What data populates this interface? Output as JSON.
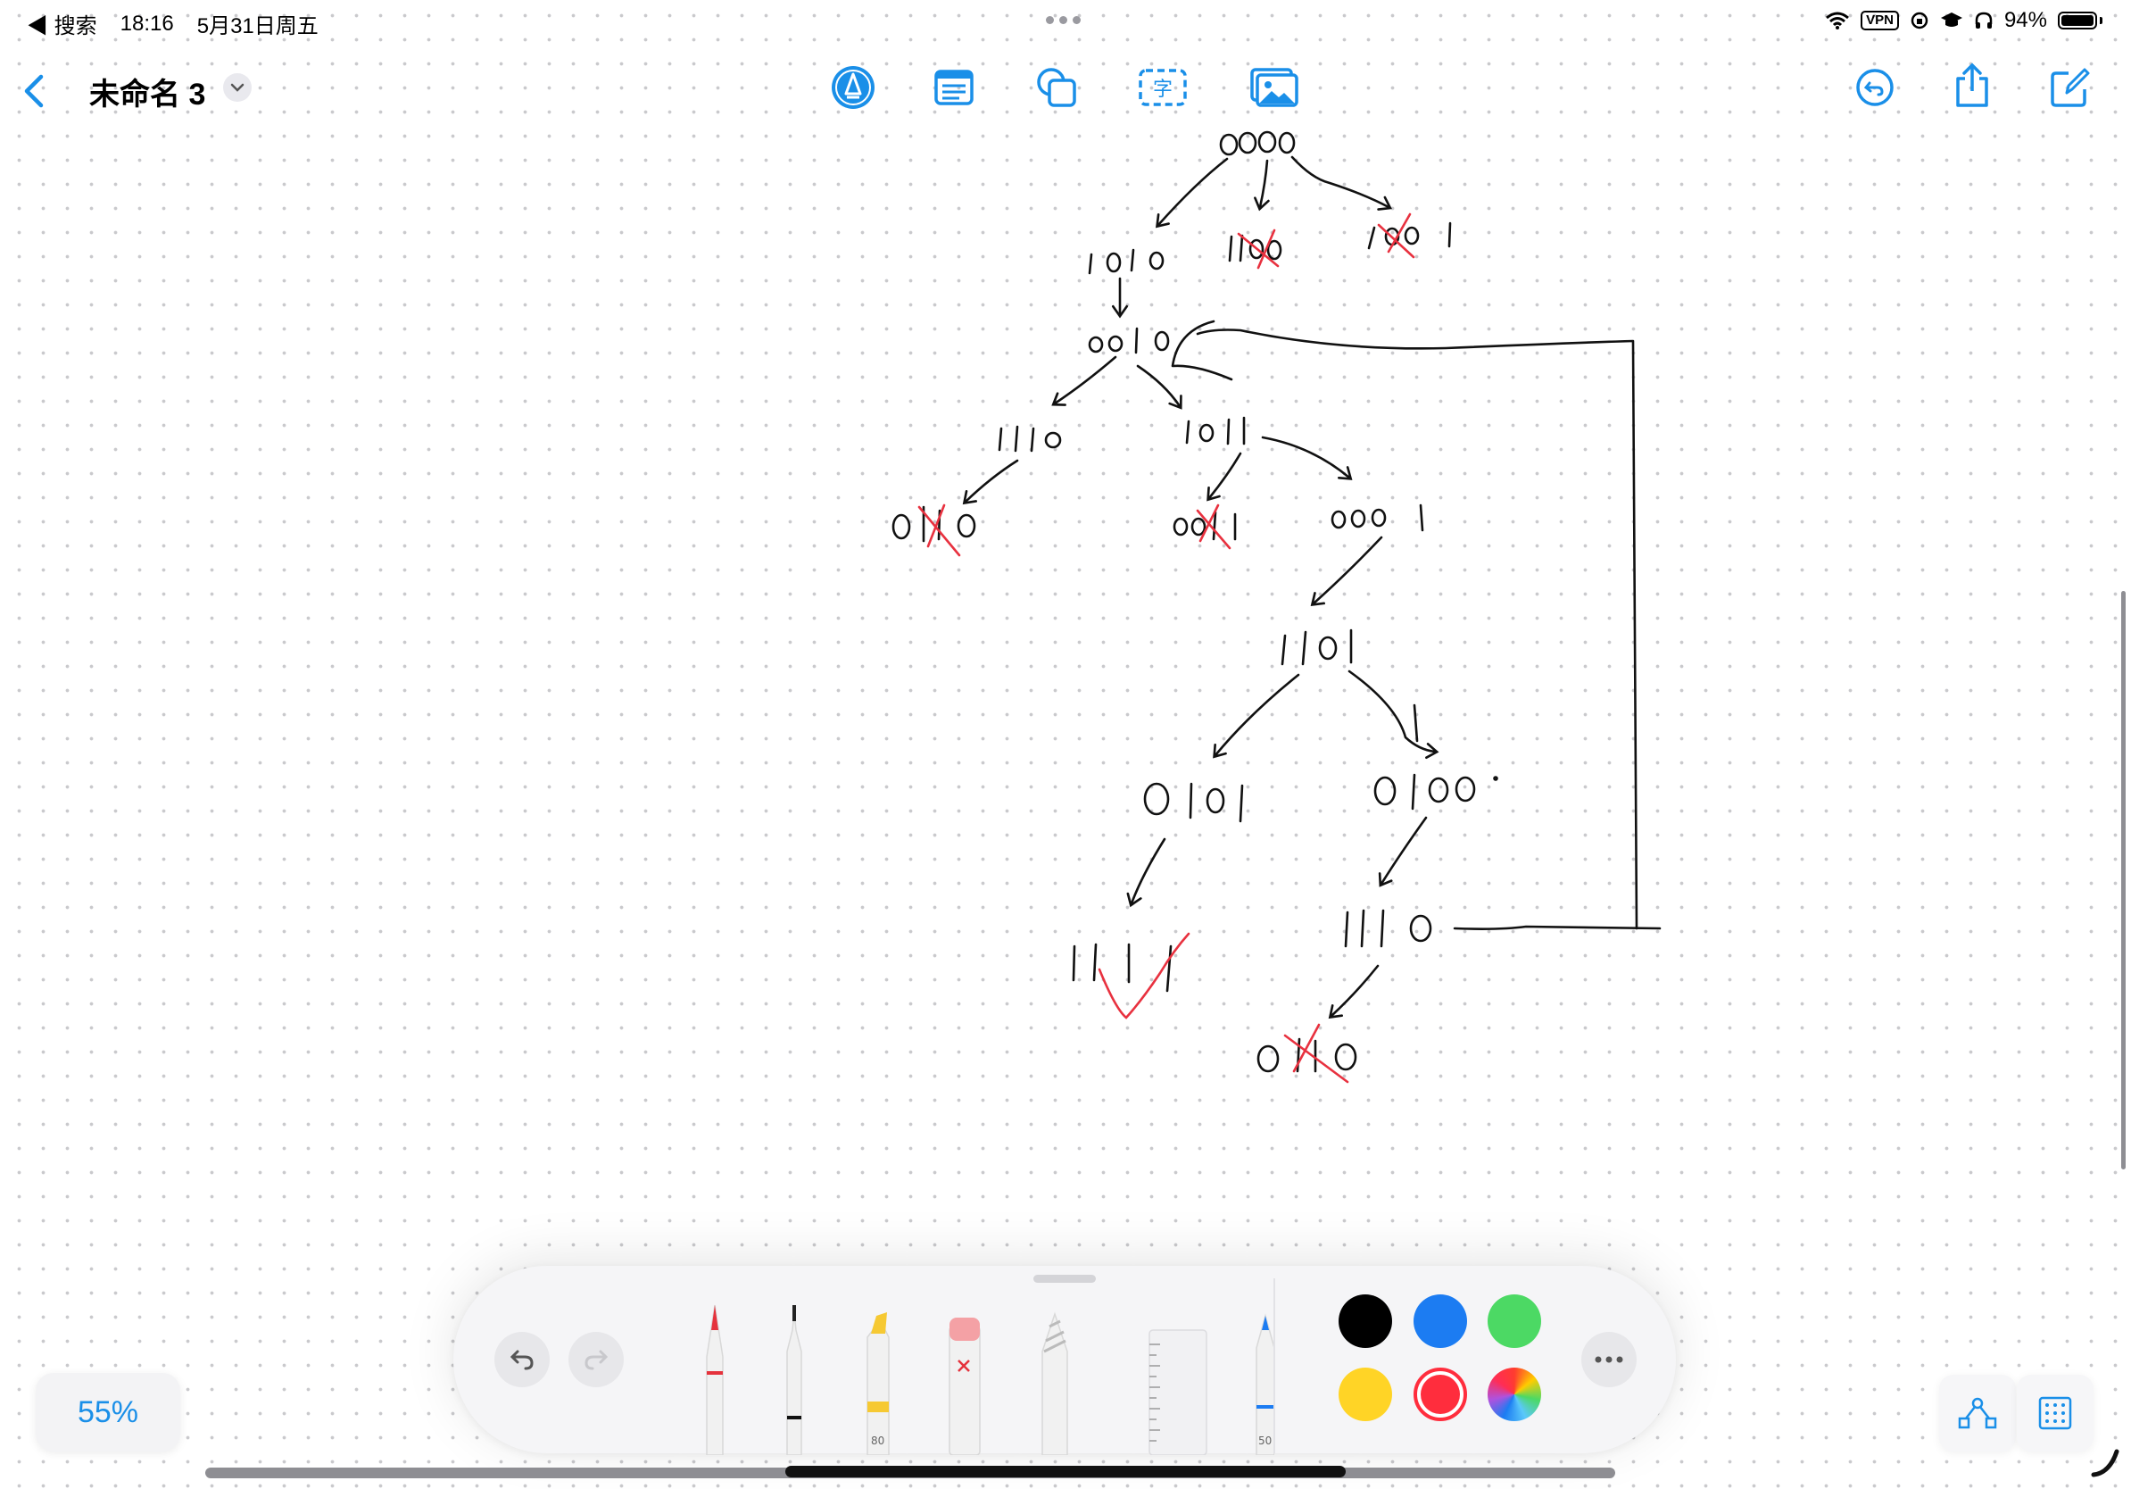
{
  "status_bar": {
    "back_app": "◀ 搜索",
    "time": "18:16",
    "date": "5月31日周五",
    "vpn": "VPN",
    "battery": "94%"
  },
  "nav": {
    "title": "未命名 3",
    "text_tool_glyph": "字"
  },
  "zoom": {
    "label": "55%"
  },
  "palette": {
    "marker_width": "80",
    "crayon_width": "50",
    "colors": [
      "#000000",
      "#1c7cf2",
      "#4cd964",
      "#ffd426",
      "#ff2d3d"
    ],
    "selected_color": "#ff2d3d"
  },
  "drawing": {
    "nodes": [
      {
        "text": "0000"
      },
      {
        "text": "1010"
      },
      {
        "text": "1100"
      },
      {
        "text": "1001"
      },
      {
        "text": "0010"
      },
      {
        "text": "1110"
      },
      {
        "text": "1011"
      },
      {
        "text": "0110"
      },
      {
        "text": "0011"
      },
      {
        "text": "0001"
      },
      {
        "text": "1101"
      },
      {
        "text": "0101"
      },
      {
        "text": "0100"
      },
      {
        "text": "1111"
      },
      {
        "text": "1110"
      },
      {
        "text": "0110"
      }
    ]
  }
}
